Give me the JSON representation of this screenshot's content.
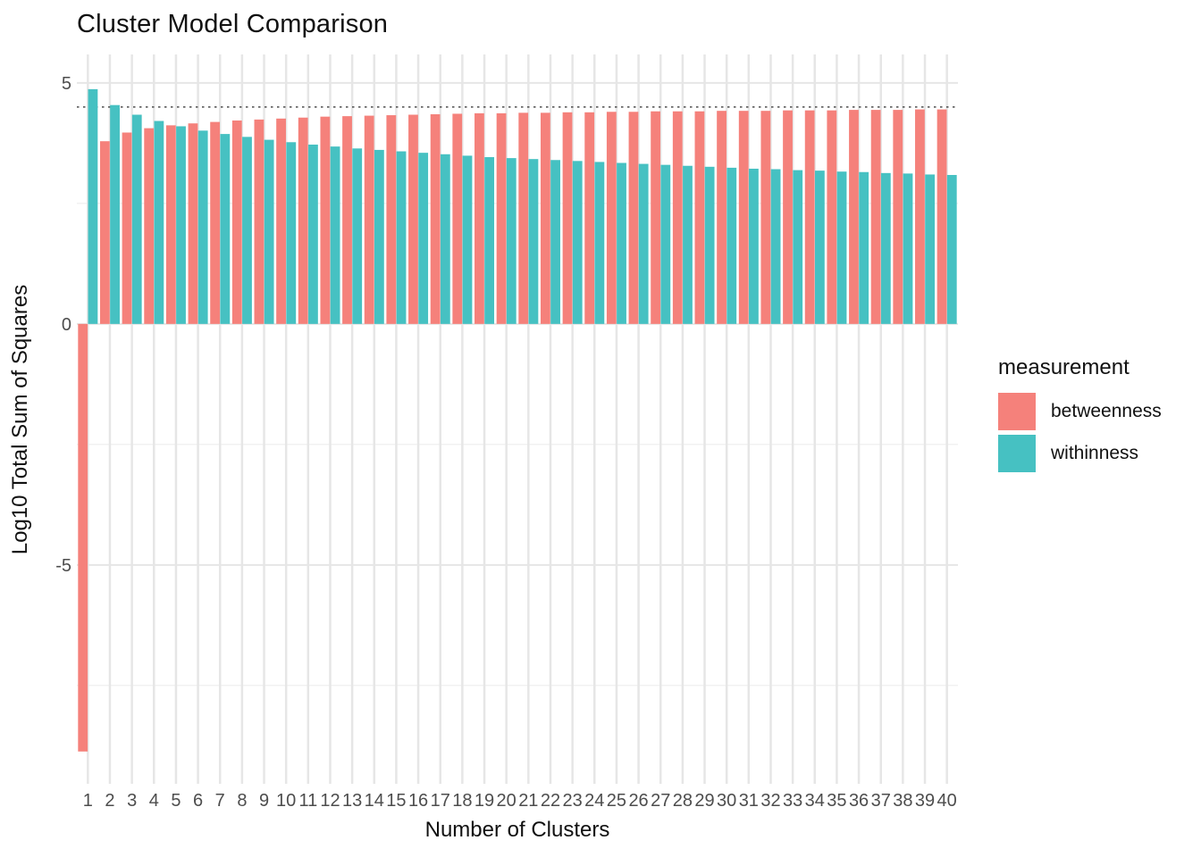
{
  "chart_data": {
    "type": "bar",
    "bar_layout": "dodged",
    "title": "Cluster Model Comparison",
    "xlabel": "Number of Clusters",
    "ylabel": "Log10 Total Sum of Squares",
    "legend_title": "measurement",
    "legend_position": "right",
    "categories": [
      1,
      2,
      3,
      4,
      5,
      6,
      7,
      8,
      9,
      10,
      11,
      12,
      13,
      14,
      15,
      16,
      17,
      18,
      19,
      20,
      21,
      22,
      23,
      24,
      25,
      26,
      27,
      28,
      29,
      30,
      31,
      32,
      33,
      34,
      35,
      36,
      37,
      38,
      39,
      40
    ],
    "series": [
      {
        "name": "betweenness",
        "color": "#F5817B",
        "values": [
          -8.87,
          3.79,
          3.97,
          4.06,
          4.12,
          4.16,
          4.19,
          4.22,
          4.24,
          4.26,
          4.28,
          4.3,
          4.31,
          4.32,
          4.33,
          4.34,
          4.35,
          4.36,
          4.37,
          4.37,
          4.38,
          4.38,
          4.39,
          4.39,
          4.4,
          4.4,
          4.41,
          4.41,
          4.41,
          4.42,
          4.42,
          4.42,
          4.43,
          4.43,
          4.43,
          4.44,
          4.44,
          4.44,
          4.45,
          4.45
        ]
      },
      {
        "name": "withinness",
        "color": "#46C1C2",
        "values": [
          4.87,
          4.54,
          4.34,
          4.21,
          4.1,
          4.01,
          3.94,
          3.88,
          3.82,
          3.77,
          3.72,
          3.68,
          3.64,
          3.61,
          3.58,
          3.55,
          3.52,
          3.49,
          3.46,
          3.44,
          3.42,
          3.4,
          3.38,
          3.36,
          3.34,
          3.32,
          3.3,
          3.28,
          3.26,
          3.24,
          3.22,
          3.21,
          3.19,
          3.18,
          3.16,
          3.15,
          3.13,
          3.12,
          3.1,
          3.09
        ]
      }
    ],
    "ylim": [
      -9.54,
      5.59
    ],
    "yticks": [
      5,
      0,
      -5
    ],
    "yticks_minor": [
      2.5,
      -2.5,
      -7.5
    ],
    "grid": true,
    "reference_line": {
      "y": 4.5,
      "style": "dotted",
      "color": "#4D4D4D"
    }
  },
  "colors": {
    "grid_major": "#E6E6E6",
    "grid_minor": "#F1F1F1",
    "axis_text": "#4D4D4D",
    "title_text": "#111111",
    "background": "#FFFFFF"
  }
}
